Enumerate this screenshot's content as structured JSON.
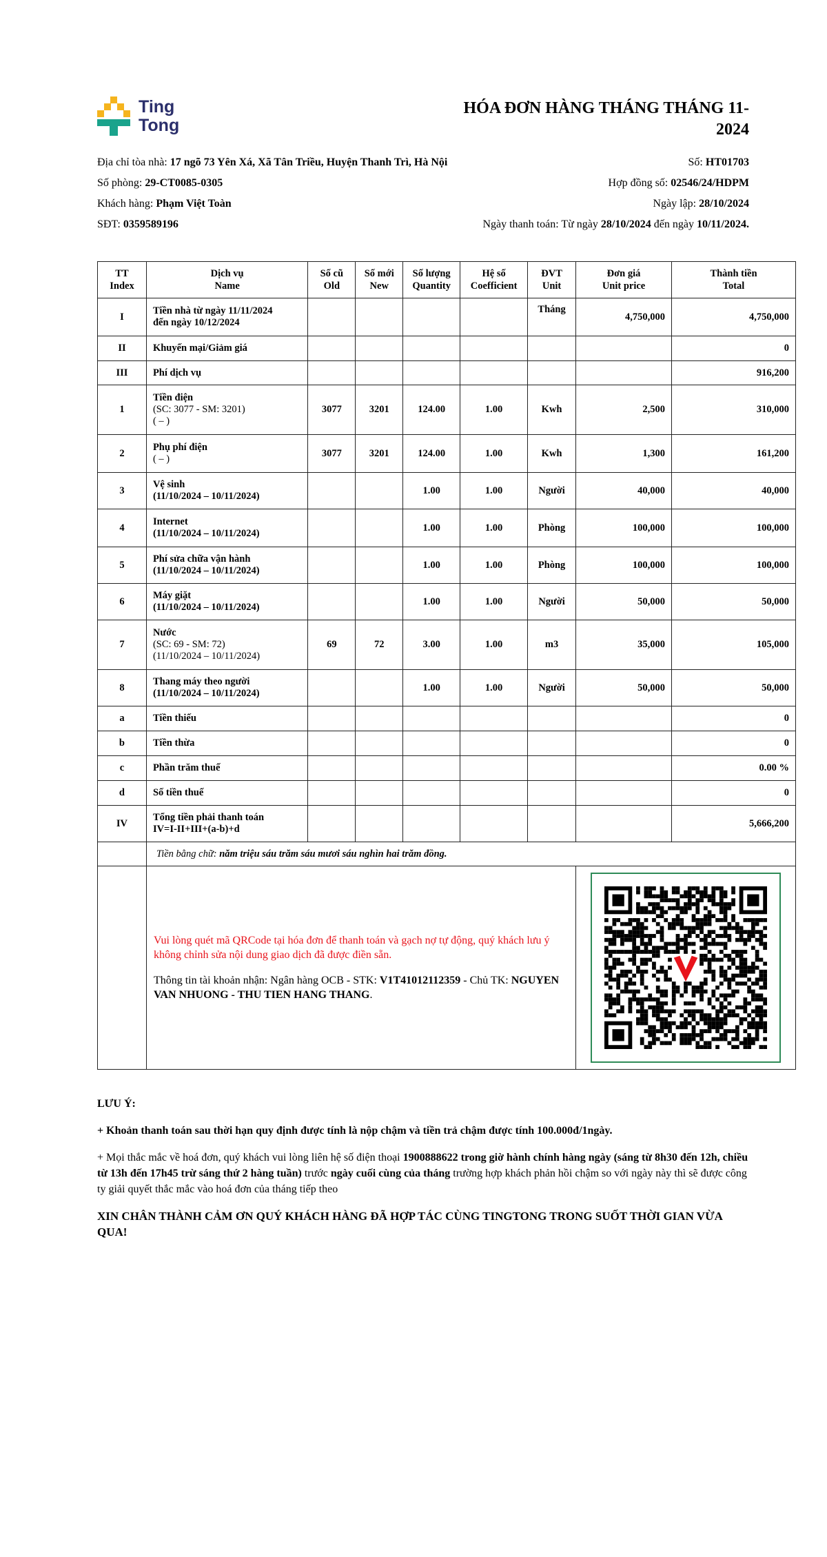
{
  "logo": {
    "line1": "Ting",
    "line2": "Tong",
    "colors": {
      "yellow": "#f5b41e",
      "teal": "#1aa38c",
      "navy": "#2b2f6b"
    }
  },
  "title": "HÓA ĐƠN HÀNG THÁNG THÁNG 11-2024",
  "left_info": [
    {
      "label": "Địa chỉ tòa nhà: ",
      "value": "17 ngõ 73 Yên Xá, Xã Tân Triều, Huyện Thanh Trì, Hà Nội"
    },
    {
      "label": "Số phòng: ",
      "value": "29-CT0085-0305"
    },
    {
      "label": "Khách hàng: ",
      "value": "Phạm Việt Toàn"
    },
    {
      "label": "SĐT: ",
      "value": "0359589196"
    }
  ],
  "right_info": {
    "so_label": "Số: ",
    "so": "HT01703",
    "hd_label": "Hợp đồng số: ",
    "hd": "02546/24/HDPM",
    "ngaylap_label": "Ngày lập: ",
    "ngaylap": "28/10/2024",
    "tt_label": "Ngày thanh toán: Từ ngày ",
    "tt_from": "28/10/2024",
    "tt_mid": " đến ngày ",
    "tt_to": "10/11/2024."
  },
  "table": {
    "headers": [
      [
        "TT",
        "Index"
      ],
      [
        "Dịch vụ",
        "Name"
      ],
      [
        "Số cũ",
        "Old"
      ],
      [
        "Số mới",
        "New"
      ],
      [
        "Số lượng",
        "Quantity"
      ],
      [
        "Hệ số",
        "Coefficient"
      ],
      [
        "ĐVT",
        "Unit"
      ],
      [
        "Đơn giá",
        "Unit price"
      ],
      [
        "Thành tiền",
        "Total"
      ]
    ],
    "rows": [
      {
        "idx": "I",
        "name": [
          "Tiền nhà từ ngày 11/11/2024",
          "đến ngày 10/12/2024"
        ],
        "old": "",
        "new": "",
        "qty": "",
        "coef": "",
        "unit": "Tháng",
        "price": "4,750,000",
        "total": "4,750,000"
      },
      {
        "idx": "II",
        "name": [
          "Khuyến mại/Giảm giá"
        ],
        "old": "",
        "new": "",
        "qty": "",
        "coef": "",
        "unit": "",
        "price": "",
        "total": "0"
      },
      {
        "idx": "III",
        "name": [
          "Phí dịch vụ"
        ],
        "old": "",
        "new": "",
        "qty": "",
        "coef": "",
        "unit": "",
        "price": "",
        "total": "916,200"
      },
      {
        "idx": "1",
        "name": [
          "Tiền điện",
          "(SC: 3077 - SM: 3201)",
          "( – )"
        ],
        "old": "3077",
        "new": "3201",
        "qty": "124.00",
        "coef": "1.00",
        "unit": "Kwh",
        "price": "2,500",
        "total": "310,000"
      },
      {
        "idx": "2",
        "name": [
          "Phụ phí điện",
          "( – )"
        ],
        "old": "3077",
        "new": "3201",
        "qty": "124.00",
        "coef": "1.00",
        "unit": "Kwh",
        "price": "1,300",
        "total": "161,200"
      },
      {
        "idx": "3",
        "name": [
          "Vệ sinh",
          "(11/10/2024 – 10/11/2024)"
        ],
        "old": "",
        "new": "",
        "qty": "1.00",
        "coef": "1.00",
        "unit": "Người",
        "price": "40,000",
        "total": "40,000"
      },
      {
        "idx": "4",
        "name": [
          "Internet",
          "(11/10/2024 – 10/11/2024)"
        ],
        "old": "",
        "new": "",
        "qty": "1.00",
        "coef": "1.00",
        "unit": "Phòng",
        "price": "100,000",
        "total": "100,000"
      },
      {
        "idx": "5",
        "name": [
          "Phí sửa chữa vận hành",
          "(11/10/2024 – 10/11/2024)"
        ],
        "old": "",
        "new": "",
        "qty": "1.00",
        "coef": "1.00",
        "unit": "Phòng",
        "price": "100,000",
        "total": "100,000"
      },
      {
        "idx": "6",
        "name": [
          "Máy giặt",
          "(11/10/2024 – 10/11/2024)"
        ],
        "old": "",
        "new": "",
        "qty": "1.00",
        "coef": "1.00",
        "unit": "Người",
        "price": "50,000",
        "total": "50,000"
      },
      {
        "idx": "7",
        "name": [
          "Nước",
          "(SC: 69 - SM: 72)",
          "(11/10/2024 – 10/11/2024)"
        ],
        "old": "69",
        "new": "72",
        "qty": "3.00",
        "coef": "1.00",
        "unit": "m3",
        "price": "35,000",
        "total": "105,000"
      },
      {
        "idx": "8",
        "name": [
          "Thang máy theo người",
          "(11/10/2024 – 10/11/2024)"
        ],
        "old": "",
        "new": "",
        "qty": "1.00",
        "coef": "1.00",
        "unit": "Người",
        "price": "50,000",
        "total": "50,000"
      },
      {
        "idx": "a",
        "name": [
          "Tiền thiếu"
        ],
        "old": "",
        "new": "",
        "qty": "",
        "coef": "",
        "unit": "",
        "price": "",
        "total": "0"
      },
      {
        "idx": "b",
        "name": [
          "Tiền thừa"
        ],
        "old": "",
        "new": "",
        "qty": "",
        "coef": "",
        "unit": "",
        "price": "",
        "total": "0"
      },
      {
        "idx": "c",
        "name": [
          "Phần trăm thuế"
        ],
        "old": "",
        "new": "",
        "qty": "",
        "coef": "",
        "unit": "",
        "price": "",
        "total": "0.00 %"
      },
      {
        "idx": "d",
        "name": [
          "Số tiền thuế"
        ],
        "old": "",
        "new": "",
        "qty": "",
        "coef": "",
        "unit": "",
        "price": "",
        "total": "0"
      },
      {
        "idx": "IV",
        "name": [
          "Tổng tiền phải thanh toán",
          "IV=I-II+III+(a-b)+d"
        ],
        "old": "",
        "new": "",
        "qty": "",
        "coef": "",
        "unit": "",
        "price": "",
        "total": "5,666,200"
      }
    ],
    "words_label": "Tiền bằng chữ: ",
    "words": "năm triệu sáu trăm sáu mươi sáu nghìn hai trăm đồng."
  },
  "payment": {
    "notice": "Vui lòng quét mã QRCode tại hóa đơn để thanh toán và gạch nợ tự động, quý khách lưu ý không chỉnh sửa nội dung giao dịch đã được điền sẵn.",
    "account_prefix": "Thông tin tài khoản nhận: Ngân hàng OCB - STK: ",
    "account_no": "V1T41012112359",
    "holder_prefix": " - Chủ TK: ",
    "holder": "NGUYEN VAN NHUONG - THU TIEN HANG THANG",
    "holder_suffix": ".",
    "qr_icon": "qr-code",
    "qr_border_color": "#2e8b57",
    "qr_logo_color": "#e8141c"
  },
  "notes": {
    "heading": "LƯU Ý:",
    "late": "+ Khoản thanh toán sau thời hạn quy định được tính là nộp chậm và tiền trả chậm được tính 100.000đ/1ngày.",
    "contact_1": "+ Mọi thắc mắc về hoá đơn, quý khách vui lòng liên hệ số điện thoại ",
    "contact_2": "1900888622 trong giờ hành chính hàng ngày (sáng từ 8h30 đến 12h, chiều từ 13h đến 17h45 trừ sáng thứ 2 hàng tuần)",
    "contact_3": " trước ",
    "contact_4": "ngày cuối cùng của tháng",
    "contact_5": " trường hợp khách phản hồi chậm so với ngày này thì sẽ được công ty giải quyết thắc mắc vào hoá đơn của tháng tiếp theo",
    "thanks": "XIN CHÂN THÀNH CẢM ƠN QUÝ KHÁCH HÀNG ĐÃ HỢP TÁC CÙNG TINGTONG TRONG SUỐT THỜI GIAN VỪA QUA!"
  }
}
